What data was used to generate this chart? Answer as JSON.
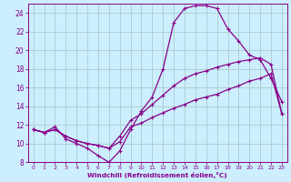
{
  "xlabel": "Windchill (Refroidissement éolien,°C)",
  "line1_x": [
    0,
    1,
    2,
    3,
    4,
    5,
    6,
    7,
    8,
    9,
    10,
    11,
    12,
    13,
    14,
    15,
    16,
    17,
    18,
    19,
    20,
    21,
    22,
    23
  ],
  "line1_y": [
    11.5,
    11.2,
    11.8,
    10.5,
    10.0,
    9.5,
    8.7,
    8.0,
    9.2,
    11.5,
    13.5,
    15.0,
    18.0,
    23.0,
    24.5,
    24.8,
    24.8,
    24.5,
    22.3,
    21.0,
    19.5,
    19.0,
    17.0,
    14.5
  ],
  "line2_x": [
    0,
    1,
    2,
    3,
    4,
    5,
    6,
    7,
    8,
    9,
    10,
    11,
    12,
    13,
    14,
    15,
    16,
    17,
    18,
    19,
    20,
    21,
    22,
    23
  ],
  "line2_y": [
    11.5,
    11.2,
    11.5,
    10.8,
    10.3,
    10.0,
    9.8,
    9.5,
    10.8,
    12.5,
    13.2,
    14.2,
    15.2,
    16.2,
    17.0,
    17.5,
    17.8,
    18.2,
    18.5,
    18.8,
    19.0,
    19.2,
    18.5,
    13.2
  ],
  "line3_x": [
    0,
    1,
    2,
    3,
    4,
    5,
    6,
    7,
    8,
    9,
    10,
    11,
    12,
    13,
    14,
    15,
    16,
    17,
    18,
    19,
    20,
    21,
    22,
    23
  ],
  "line3_y": [
    11.5,
    11.2,
    11.5,
    10.8,
    10.3,
    10.0,
    9.8,
    9.5,
    10.2,
    11.8,
    12.2,
    12.8,
    13.3,
    13.8,
    14.2,
    14.7,
    15.0,
    15.3,
    15.8,
    16.2,
    16.7,
    17.0,
    17.5,
    13.2
  ],
  "line_color": "#880088",
  "bg_color": "#cceeff",
  "grid_color": "#aacccc",
  "tick_color": "#880088",
  "label_color": "#880088",
  "xlim": [
    -0.5,
    23.5
  ],
  "ylim": [
    8,
    25
  ],
  "yticks": [
    8,
    10,
    12,
    14,
    16,
    18,
    20,
    22,
    24
  ],
  "xticks": [
    0,
    1,
    2,
    3,
    4,
    5,
    6,
    7,
    8,
    9,
    10,
    11,
    12,
    13,
    14,
    15,
    16,
    17,
    18,
    19,
    20,
    21,
    22,
    23
  ]
}
